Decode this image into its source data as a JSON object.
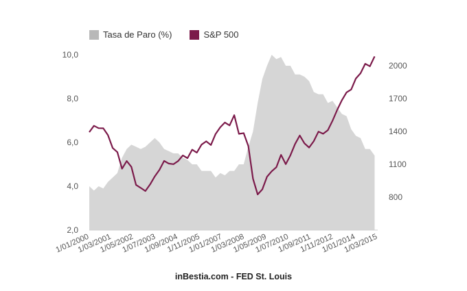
{
  "colors": {
    "unemployment_fill": "#d6d6d6",
    "unemployment_swatch": "#b8b8b8",
    "sp500": "#7b1a4a"
  },
  "source_text": "inBestia.com - FED St. Louis",
  "chart_data": {
    "type": "area",
    "legend": [
      {
        "label": "Tasa de Paro (%)",
        "color": "#b8b8b8"
      },
      {
        "label": "S&P 500",
        "color": "#7b1a4a"
      }
    ],
    "x_tick_labels": [
      "1/01/2000",
      "1/03/2001",
      "1/05/2002",
      "1/07/2003",
      "1/09/2004",
      "1/11/2005",
      "1/01/2007",
      "1/03/2008",
      "1/05/2009",
      "1/07/2010",
      "1/09/2011",
      "1/11/2012",
      "1/01/2014",
      "1/03/2015"
    ],
    "x_range": [
      "2000-01",
      "2015-06"
    ],
    "y_left": {
      "ticks": [
        "2,0",
        "4,0",
        "6,0",
        "8,0",
        "10,0"
      ],
      "ylim": [
        2,
        10
      ]
    },
    "y_right": {
      "ticks": [
        "800",
        "1100",
        "1400",
        "1700",
        "2000"
      ],
      "ylim": [
        500,
        2100
      ]
    },
    "series": [
      {
        "name": "Tasa de Paro (%)",
        "axis": "left",
        "type": "area",
        "x": [
          "2000-01",
          "2000-04",
          "2000-07",
          "2000-10",
          "2001-01",
          "2001-04",
          "2001-07",
          "2001-10",
          "2002-01",
          "2002-04",
          "2002-07",
          "2002-10",
          "2003-01",
          "2003-04",
          "2003-07",
          "2003-10",
          "2004-01",
          "2004-04",
          "2004-07",
          "2004-10",
          "2005-01",
          "2005-04",
          "2005-07",
          "2005-10",
          "2006-01",
          "2006-04",
          "2006-07",
          "2006-10",
          "2007-01",
          "2007-04",
          "2007-07",
          "2007-10",
          "2008-01",
          "2008-04",
          "2008-07",
          "2008-10",
          "2009-01",
          "2009-04",
          "2009-07",
          "2009-10",
          "2010-01",
          "2010-04",
          "2010-07",
          "2010-10",
          "2011-01",
          "2011-04",
          "2011-07",
          "2011-10",
          "2012-01",
          "2012-04",
          "2012-07",
          "2012-10",
          "2013-01",
          "2013-04",
          "2013-07",
          "2013-10",
          "2014-01",
          "2014-04",
          "2014-07",
          "2014-10",
          "2015-01",
          "2015-04"
        ],
        "values": [
          4.0,
          3.8,
          4.0,
          3.9,
          4.2,
          4.4,
          4.6,
          5.3,
          5.7,
          5.9,
          5.8,
          5.7,
          5.8,
          6.0,
          6.2,
          6.0,
          5.7,
          5.6,
          5.5,
          5.5,
          5.3,
          5.2,
          5.0,
          5.0,
          4.7,
          4.7,
          4.7,
          4.4,
          4.6,
          4.5,
          4.7,
          4.7,
          5.0,
          5.0,
          5.8,
          6.5,
          7.8,
          8.9,
          9.5,
          10.0,
          9.8,
          9.9,
          9.5,
          9.5,
          9.1,
          9.1,
          9.0,
          8.8,
          8.3,
          8.2,
          8.2,
          7.8,
          7.9,
          7.6,
          7.3,
          7.2,
          6.6,
          6.3,
          6.2,
          5.7,
          5.7,
          5.4
        ]
      },
      {
        "name": "S&P 500",
        "axis": "right",
        "type": "line",
        "x": [
          "2000-01",
          "2000-04",
          "2000-07",
          "2000-10",
          "2001-01",
          "2001-04",
          "2001-07",
          "2001-10",
          "2002-01",
          "2002-04",
          "2002-07",
          "2002-10",
          "2003-01",
          "2003-04",
          "2003-07",
          "2003-10",
          "2004-01",
          "2004-04",
          "2004-07",
          "2004-10",
          "2005-01",
          "2005-04",
          "2005-07",
          "2005-10",
          "2006-01",
          "2006-04",
          "2006-07",
          "2006-10",
          "2007-01",
          "2007-04",
          "2007-07",
          "2007-10",
          "2008-01",
          "2008-04",
          "2008-07",
          "2008-10",
          "2009-01",
          "2009-04",
          "2009-07",
          "2009-10",
          "2010-01",
          "2010-04",
          "2010-07",
          "2010-10",
          "2011-01",
          "2011-04",
          "2011-07",
          "2011-10",
          "2012-01",
          "2012-04",
          "2012-07",
          "2012-10",
          "2013-01",
          "2013-04",
          "2013-07",
          "2013-10",
          "2014-01",
          "2014-04",
          "2014-07",
          "2014-10",
          "2015-01",
          "2015-04"
        ],
        "values": [
          1394,
          1452,
          1430,
          1429,
          1366,
          1249,
          1211,
          1060,
          1130,
          1077,
          912,
          885,
          856,
          916,
          990,
          1050,
          1131,
          1107,
          1101,
          1130,
          1181,
          1156,
          1234,
          1207,
          1280,
          1310,
          1276,
          1377,
          1438,
          1482,
          1455,
          1549,
          1378,
          1385,
          1267,
          968,
          825,
          872,
          987,
          1036,
          1074,
          1187,
          1101,
          1183,
          1286,
          1363,
          1292,
          1253,
          1312,
          1398,
          1379,
          1412,
          1498,
          1597,
          1685,
          1757,
          1783,
          1884,
          1931,
          2018,
          1995,
          2085
        ]
      }
    ]
  }
}
